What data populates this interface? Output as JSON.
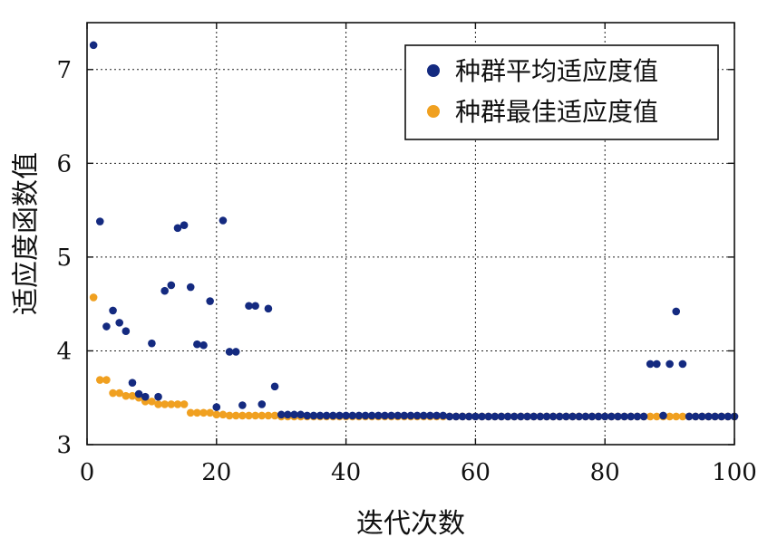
{
  "chart_data": {
    "type": "scatter",
    "xlabel": "迭代次数",
    "ylabel": "适应度函数值",
    "xlim": [
      0,
      100
    ],
    "ylim": [
      3,
      7.5
    ],
    "xticks": [
      0,
      20,
      40,
      60,
      80,
      100
    ],
    "yticks": [
      3,
      4,
      5,
      6,
      7
    ],
    "grid": true,
    "legend_position": "top-right",
    "series": [
      {
        "name": "种群平均适应度值",
        "color": "#142a80",
        "x": [
          1,
          2,
          3,
          4,
          5,
          6,
          7,
          8,
          9,
          10,
          11,
          12,
          13,
          14,
          15,
          16,
          17,
          18,
          19,
          20,
          21,
          22,
          23,
          24,
          25,
          26,
          27,
          28,
          29,
          30,
          31,
          32,
          33,
          34,
          35,
          36,
          37,
          38,
          39,
          40,
          41,
          42,
          43,
          44,
          45,
          46,
          47,
          48,
          49,
          50,
          51,
          52,
          53,
          54,
          55,
          56,
          57,
          58,
          59,
          60,
          61,
          62,
          63,
          64,
          65,
          66,
          67,
          68,
          69,
          70,
          71,
          72,
          73,
          74,
          75,
          76,
          77,
          78,
          79,
          80,
          81,
          82,
          83,
          84,
          85,
          86,
          87,
          88,
          89,
          90,
          91,
          92,
          93,
          94,
          95,
          96,
          97,
          98,
          99,
          100
        ],
        "y": [
          7.26,
          5.38,
          4.26,
          4.43,
          4.3,
          4.21,
          3.66,
          3.54,
          3.51,
          4.08,
          3.51,
          4.64,
          4.7,
          5.31,
          5.34,
          4.68,
          4.07,
          4.06,
          4.53,
          3.4,
          5.39,
          3.99,
          3.99,
          3.42,
          4.48,
          4.48,
          3.43,
          4.45,
          3.62,
          3.32,
          3.32,
          3.32,
          3.32,
          3.31,
          3.31,
          3.31,
          3.31,
          3.31,
          3.31,
          3.31,
          3.31,
          3.31,
          3.31,
          3.31,
          3.31,
          3.31,
          3.31,
          3.31,
          3.31,
          3.31,
          3.31,
          3.31,
          3.31,
          3.31,
          3.31,
          3.3,
          3.3,
          3.3,
          3.3,
          3.3,
          3.3,
          3.3,
          3.3,
          3.3,
          3.3,
          3.3,
          3.3,
          3.3,
          3.3,
          3.3,
          3.3,
          3.3,
          3.3,
          3.3,
          3.3,
          3.3,
          3.3,
          3.3,
          3.3,
          3.3,
          3.3,
          3.3,
          3.3,
          3.3,
          3.3,
          3.3,
          3.86,
          3.86,
          3.31,
          3.86,
          4.42,
          3.86,
          3.3,
          3.3,
          3.3,
          3.3,
          3.3,
          3.3,
          3.3,
          3.3
        ]
      },
      {
        "name": "种群最佳适应度值",
        "color": "#f0a020",
        "x": [
          1,
          2,
          3,
          4,
          5,
          6,
          7,
          8,
          9,
          10,
          11,
          12,
          13,
          14,
          15,
          16,
          17,
          18,
          19,
          20,
          21,
          22,
          23,
          24,
          25,
          26,
          27,
          28,
          29,
          30,
          31,
          32,
          33,
          34,
          35,
          36,
          37,
          38,
          39,
          40,
          41,
          42,
          43,
          44,
          45,
          46,
          47,
          48,
          49,
          50,
          51,
          52,
          53,
          54,
          55,
          56,
          57,
          58,
          59,
          60,
          61,
          62,
          63,
          64,
          65,
          66,
          67,
          68,
          69,
          70,
          71,
          72,
          73,
          74,
          75,
          76,
          77,
          78,
          79,
          80,
          81,
          82,
          83,
          84,
          85,
          86,
          87,
          88,
          89,
          90,
          91,
          92,
          93,
          94,
          95,
          96,
          97,
          98,
          99,
          100
        ],
        "y": [
          4.57,
          3.69,
          3.69,
          3.55,
          3.55,
          3.52,
          3.52,
          3.5,
          3.46,
          3.46,
          3.43,
          3.43,
          3.43,
          3.43,
          3.43,
          3.34,
          3.34,
          3.34,
          3.34,
          3.32,
          3.32,
          3.31,
          3.31,
          3.31,
          3.31,
          3.31,
          3.31,
          3.31,
          3.31,
          3.3,
          3.3,
          3.3,
          3.3,
          3.3,
          3.3,
          3.3,
          3.3,
          3.3,
          3.3,
          3.3,
          3.3,
          3.3,
          3.3,
          3.3,
          3.3,
          3.3,
          3.3,
          3.3,
          3.3,
          3.3,
          3.3,
          3.3,
          3.3,
          3.3,
          3.3,
          3.3,
          3.3,
          3.3,
          3.3,
          3.3,
          3.3,
          3.3,
          3.3,
          3.3,
          3.3,
          3.3,
          3.3,
          3.3,
          3.3,
          3.3,
          3.3,
          3.3,
          3.3,
          3.3,
          3.3,
          3.3,
          3.3,
          3.3,
          3.3,
          3.3,
          3.3,
          3.3,
          3.3,
          3.3,
          3.3,
          3.3,
          3.3,
          3.3,
          3.3,
          3.3,
          3.3,
          3.3,
          3.3,
          3.3,
          3.3,
          3.3,
          3.3,
          3.3,
          3.3,
          3.3
        ]
      }
    ]
  }
}
